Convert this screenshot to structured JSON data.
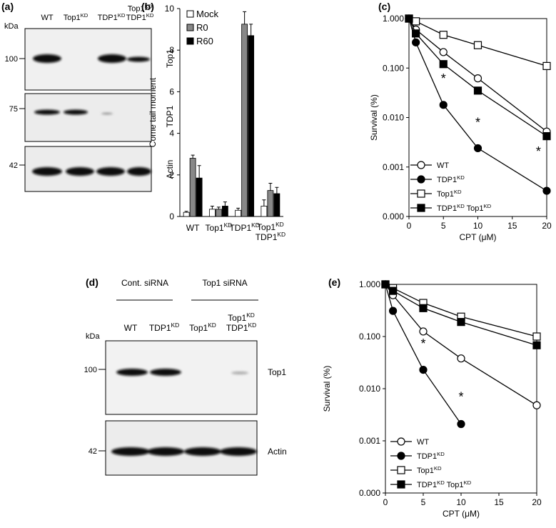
{
  "chart_data": [
    {
      "type": "bar",
      "panel": "(b)",
      "ylabel": "Come tail moment",
      "categories": [
        "WT",
        "Top1KD",
        "TDP1KD",
        "Top1KD TDP1KD"
      ],
      "series": [
        {
          "name": "Mock",
          "color": "#ffffff",
          "values": [
            0.2,
            0.35,
            0.3,
            0.5
          ],
          "errors": [
            0.05,
            0.15,
            0.1,
            0.3
          ]
        },
        {
          "name": "R0",
          "color": "#888888",
          "values": [
            2.8,
            0.35,
            9.25,
            1.25
          ],
          "errors": [
            0.15,
            0.1,
            0.6,
            0.35
          ]
        },
        {
          "name": "R60",
          "color": "#000000",
          "values": [
            1.85,
            0.5,
            8.7,
            1.1
          ],
          "errors": [
            0.6,
            0.2,
            0.55,
            0.3
          ]
        }
      ],
      "ylim": [
        0,
        10
      ],
      "yticks": [
        0,
        2,
        4,
        6,
        8,
        10
      ],
      "legend": "upper left"
    },
    {
      "type": "line",
      "panel": "(c)",
      "ylabel": "Survival (%)",
      "xlabel": "CPT (μM)",
      "log_y": true,
      "x": [
        0,
        1,
        5,
        10,
        20
      ],
      "xlim": [
        0,
        20
      ],
      "xticks": [
        0,
        5,
        10,
        15,
        20
      ],
      "ylim": [
        0.0001,
        1
      ],
      "yticks": [
        {
          "value": 0.0001,
          "label": "0.000"
        },
        {
          "value": 0.001,
          "label": "0.001"
        },
        {
          "value": 0.01,
          "label": "0.010"
        },
        {
          "value": 0.1,
          "label": "0.100"
        },
        {
          "value": 1,
          "label": "1.000"
        }
      ],
      "legend": "lower left",
      "annotations": [
        "*",
        "*",
        "*"
      ],
      "series": [
        {
          "name": "WT",
          "color": "#000000",
          "marker": "circle",
          "marker_fill": "#ffffff",
          "values": [
            1,
            0.6,
            0.21,
            0.062,
            0.0052
          ]
        },
        {
          "name": "TDP1KD",
          "color": "#000000",
          "marker": "circle",
          "marker_fill": "#000000",
          "values": [
            1,
            0.33,
            0.018,
            0.0024,
            0.00033
          ]
        },
        {
          "name": "Top1KD",
          "color": "#000000",
          "marker": "square",
          "marker_fill": "#ffffff",
          "values": [
            1,
            0.88,
            0.47,
            0.29,
            0.11
          ]
        },
        {
          "name": "TDP1KD Top1KD",
          "color": "#000000",
          "marker": "square",
          "marker_fill": "#000000",
          "values": [
            1,
            0.5,
            0.12,
            0.035,
            0.0042
          ]
        }
      ]
    },
    {
      "type": "line",
      "panel": "(e)",
      "ylabel": "Survival (%)",
      "xlabel": "CPT (μM)",
      "log_y": true,
      "x": [
        0,
        1,
        5,
        10,
        20
      ],
      "xlim": [
        0,
        20
      ],
      "xticks": [
        0,
        5,
        10,
        15,
        20
      ],
      "ylim": [
        0.0001,
        1
      ],
      "yticks": [
        {
          "value": 0.0001,
          "label": "0.000"
        },
        {
          "value": 0.001,
          "label": "0.001"
        },
        {
          "value": 0.01,
          "label": "0.010"
        },
        {
          "value": 0.1,
          "label": "0.100"
        },
        {
          "value": 1,
          "label": "1.000"
        }
      ],
      "legend": "lower left",
      "annotations": [
        "*",
        "*"
      ],
      "series": [
        {
          "name": "WT",
          "color": "#000000",
          "marker": "circle",
          "marker_fill": "#ffffff",
          "values": [
            1,
            0.62,
            0.125,
            0.038,
            0.0048
          ]
        },
        {
          "name": "TDP1KD",
          "color": "#000000",
          "marker": "circle",
          "marker_fill": "#000000",
          "values": [
            1,
            0.31,
            0.023,
            0.0021,
            null
          ]
        },
        {
          "name": "Top1KD",
          "color": "#000000",
          "marker": "square",
          "marker_fill": "#ffffff",
          "values": [
            1,
            0.85,
            0.44,
            0.24,
            0.1
          ]
        },
        {
          "name": "TDP1KD Top1KD",
          "color": "#000000",
          "marker": "square",
          "marker_fill": "#000000",
          "values": [
            1,
            0.75,
            0.35,
            0.19,
            0.068
          ]
        }
      ]
    }
  ],
  "blots": [
    {
      "panel": "(a)",
      "lanes": [
        "WT",
        "Top1KD",
        "TDP1KD",
        "Top1KD TDP1KD"
      ],
      "unit": "kDa",
      "markers": [
        100,
        75,
        42
      ],
      "proteins": [
        "Top1",
        "TDP1",
        "Actin"
      ]
    },
    {
      "panel": "(d)",
      "groups": [
        "Cont. siRNA",
        "Top1 siRNA"
      ],
      "lanes": [
        "WT",
        "TDP1KD",
        "Top1KD",
        "Top1KD TDP1KD"
      ],
      "unit": "kDa",
      "markers": [
        100,
        42
      ],
      "proteins": [
        "Top1",
        "Actin"
      ]
    }
  ]
}
